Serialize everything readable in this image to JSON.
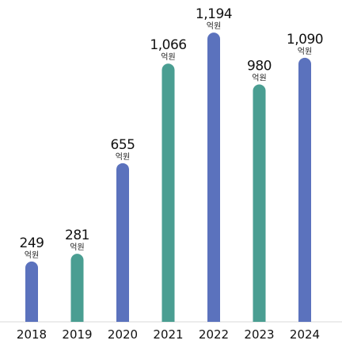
{
  "chart_data": {
    "type": "bar",
    "categories": [
      "2018",
      "2019",
      "2020",
      "2021",
      "2022",
      "2023",
      "2024"
    ],
    "values": [
      249,
      281,
      655,
      1066,
      1194,
      980,
      1090
    ],
    "value_labels": [
      "249",
      "281",
      "655",
      "1,066",
      "1,194",
      "980",
      "1,090"
    ],
    "unit_label": "억원",
    "bar_colors": [
      "#5b72bd",
      "#4a9e92",
      "#5b72bd",
      "#4a9e92",
      "#5b72bd",
      "#4a9e92",
      "#5b72bd"
    ],
    "ylim": [
      0,
      1250
    ],
    "grid": false,
    "legend": "none",
    "title": "",
    "xlabel": "",
    "ylabel": ""
  }
}
